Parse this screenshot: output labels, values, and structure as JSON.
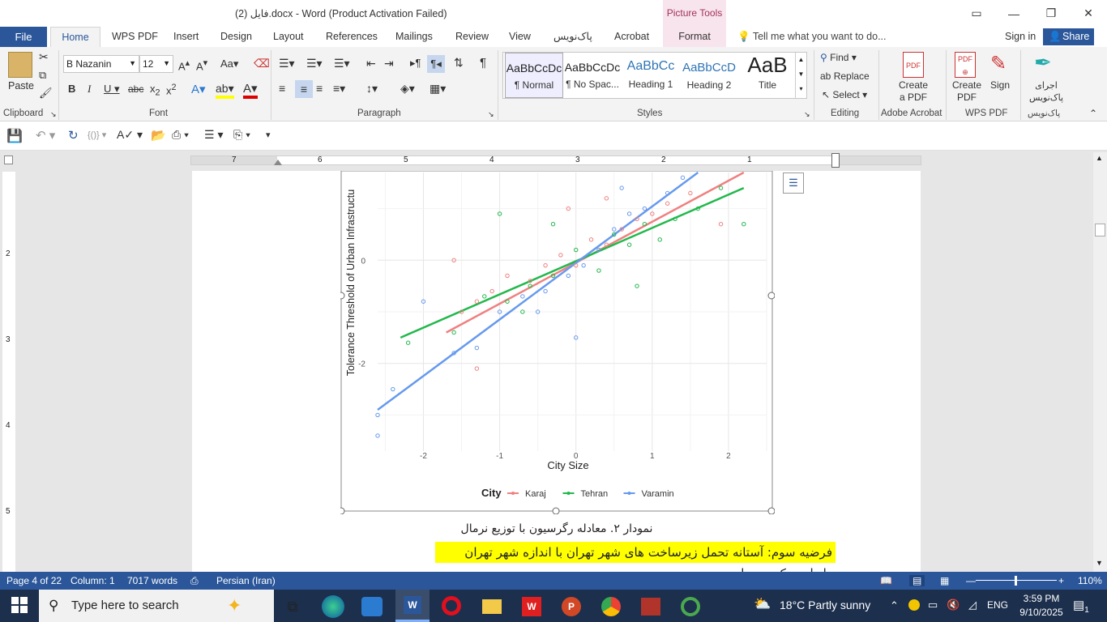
{
  "title": "فایل (2).docx - Word (Product Activation Failed)",
  "contextual_group": "Picture Tools",
  "tabs": [
    "WPS PDF",
    "Insert",
    "Design",
    "Layout",
    "References",
    "Mailings",
    "Review",
    "View",
    "پاک‌نویس",
    "Acrobat"
  ],
  "tab_file": "File",
  "tab_home": "Home",
  "tab_format": "Format",
  "tell_me": "Tell me what you want to do...",
  "sign_in": "Sign in",
  "share": "Share",
  "clipboard": {
    "paste": "Paste",
    "label": "Clipboard"
  },
  "font": {
    "name": "B Nazanin",
    "size": "12",
    "label": "Font"
  },
  "paragraph_label": "Paragraph",
  "styles": {
    "label": "Styles",
    "items": [
      {
        "preview": "AaBbCcDc",
        "name": "¶ Normal"
      },
      {
        "preview": "AaBbCcDc",
        "name": "¶ No Spac..."
      },
      {
        "preview": "AaBbCc",
        "name": "Heading 1"
      },
      {
        "preview": "AaBbCcD",
        "name": "Heading 2"
      },
      {
        "preview": "AaB",
        "name": "Title"
      }
    ]
  },
  "editing": {
    "find": "Find",
    "replace": "Replace",
    "select": "Select",
    "label": "Editing"
  },
  "acrobat": {
    "create": "Create",
    "create2": "a PDF",
    "label": "Adobe Acrobat"
  },
  "wps": {
    "create": "Create",
    "create2": "PDF",
    "sign": "Sign",
    "label": "WPS PDF"
  },
  "paknevis": {
    "l1": "اجرای",
    "l2": "پاک‌نویس",
    "label": "پاک‌نویس"
  },
  "ruler_numbers": [
    "7",
    "6",
    "5",
    "4",
    "3",
    "2",
    "1"
  ],
  "vruler_numbers": [
    "2",
    "3",
    "4",
    "5"
  ],
  "chart_data": {
    "type": "scatter",
    "xlabel": "City Size",
    "ylabel": "Tolerance Threshold of Urban Infrastructu",
    "x_ticks": [
      "-2",
      "-1",
      "0",
      "1",
      "2"
    ],
    "y_ticks": [
      "0",
      "-2"
    ],
    "xlim": [
      -2.6,
      2.5
    ],
    "ylim": [
      -3.7,
      1.7
    ],
    "legend_title": "City",
    "series": [
      {
        "name": "Karaj",
        "color": "#f08080",
        "fit": [
          [
            -1.7,
            -1.4
          ],
          [
            2.2,
            1.7
          ]
        ],
        "points": [
          [
            -1.5,
            -1.0
          ],
          [
            -1.3,
            -0.8
          ],
          [
            -1.1,
            -0.6
          ],
          [
            -0.9,
            -0.3
          ],
          [
            -0.6,
            -0.4
          ],
          [
            -0.4,
            -0.1
          ],
          [
            -0.2,
            0.1
          ],
          [
            0.0,
            -0.1
          ],
          [
            0.2,
            0.4
          ],
          [
            0.4,
            0.3
          ],
          [
            0.6,
            0.6
          ],
          [
            0.8,
            0.8
          ],
          [
            1.0,
            0.9
          ],
          [
            1.2,
            1.1
          ],
          [
            1.5,
            1.3
          ],
          [
            1.9,
            0.7
          ],
          [
            -0.1,
            1.0
          ],
          [
            -1.6,
            0.0
          ],
          [
            -1.3,
            -2.1
          ],
          [
            0.4,
            1.2
          ]
        ]
      },
      {
        "name": "Tehran",
        "color": "#22b84c",
        "fit": [
          [
            -2.3,
            -1.5
          ],
          [
            2.2,
            1.4
          ]
        ],
        "points": [
          [
            -2.2,
            -1.6
          ],
          [
            -1.6,
            -1.4
          ],
          [
            -1.2,
            -0.7
          ],
          [
            -0.9,
            -0.8
          ],
          [
            -0.6,
            -0.5
          ],
          [
            -0.3,
            -0.3
          ],
          [
            0.0,
            0.2
          ],
          [
            0.3,
            -0.2
          ],
          [
            0.5,
            0.5
          ],
          [
            0.7,
            0.3
          ],
          [
            0.9,
            0.7
          ],
          [
            1.1,
            0.4
          ],
          [
            1.3,
            0.8
          ],
          [
            1.6,
            1.0
          ],
          [
            1.9,
            1.4
          ],
          [
            2.2,
            0.7
          ],
          [
            -1.0,
            0.9
          ],
          [
            -0.3,
            0.7
          ],
          [
            0.8,
            -0.5
          ],
          [
            -0.7,
            -1.0
          ]
        ]
      },
      {
        "name": "Varamin",
        "color": "#6699ee",
        "fit": [
          [
            -2.6,
            -2.9
          ],
          [
            1.6,
            1.7
          ]
        ],
        "points": [
          [
            -2.6,
            -3.0
          ],
          [
            -2.4,
            -2.5
          ],
          [
            -2.0,
            -0.8
          ],
          [
            -1.6,
            -1.8
          ],
          [
            -1.3,
            -1.7
          ],
          [
            -1.0,
            -1.0
          ],
          [
            -0.7,
            -0.7
          ],
          [
            -0.4,
            -0.6
          ],
          [
            -0.1,
            -0.3
          ],
          [
            0.1,
            -0.1
          ],
          [
            0.3,
            0.2
          ],
          [
            0.5,
            0.6
          ],
          [
            0.7,
            0.9
          ],
          [
            0.9,
            1.0
          ],
          [
            1.2,
            1.3
          ],
          [
            1.4,
            1.6
          ],
          [
            0.0,
            -1.5
          ],
          [
            -0.5,
            -1.0
          ],
          [
            -2.6,
            -3.4
          ],
          [
            0.6,
            1.4
          ]
        ]
      }
    ]
  },
  "caption": "نمودار ۲. معادله رگرسیون با توزیع نرمال",
  "highlight": "فرضیه سوم: آستانه تحمل زیرساخت های شهر تهران با اندازه شهر تهران رابطه معکوسی دارد",
  "status": {
    "page": "Page 4 of 22",
    "column": "Column: 1",
    "words": "7017 words",
    "lang": "Persian (Iran)",
    "zoom": "110%"
  },
  "taskbar": {
    "search": "Type here to search",
    "weather": "18°C  Partly sunny",
    "lang": "ENG",
    "time": "3:59 PM",
    "date": "9/10/2025",
    "notif": "1"
  },
  "colors": {
    "accent": "#2b579a",
    "picture_tools": "#a0325a",
    "highlight": "#ffff00"
  }
}
